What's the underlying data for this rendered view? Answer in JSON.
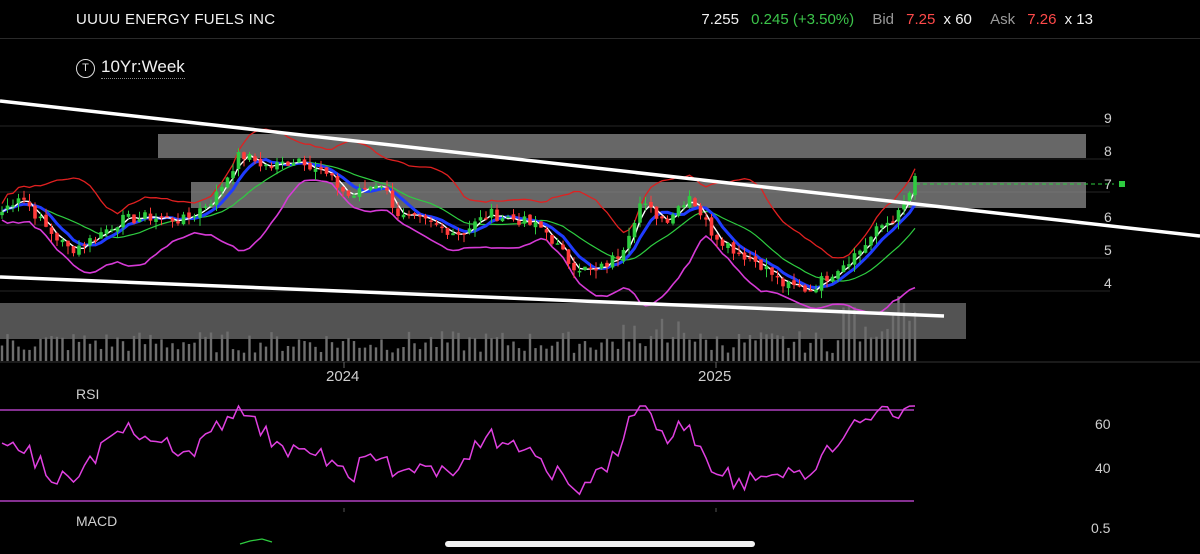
{
  "header": {
    "ticker": "UUUU ENERGY FUELS INC",
    "last": "7.255",
    "change": "0.245 (+3.50%)",
    "bid_label": "Bid",
    "bid_price": "7.25",
    "bid_size": "x 60",
    "ask_label": "Ask",
    "ask_price": "7.26",
    "ask_size": "x 13"
  },
  "period": {
    "icon": "T",
    "label": "10Yr:Week"
  },
  "price_axis": [
    "9",
    "8",
    "7",
    "6",
    "5",
    "4"
  ],
  "time_axis": [
    "2024",
    "2025"
  ],
  "rsi": {
    "label": "RSI",
    "ticks": [
      "60",
      "40"
    ]
  },
  "macd": {
    "label": "MACD",
    "ticks": [
      "0.5"
    ]
  },
  "colors": {
    "up": "#2ecc40",
    "down": "#ff3b3b",
    "bb_upper": "#e02020",
    "bb_lower": "#d63ad6",
    "ma_fast": "#ffffff",
    "ma_mid": "#1f3cff",
    "ma_slow": "#2ecc40",
    "rsi": "#e040e0"
  }
}
